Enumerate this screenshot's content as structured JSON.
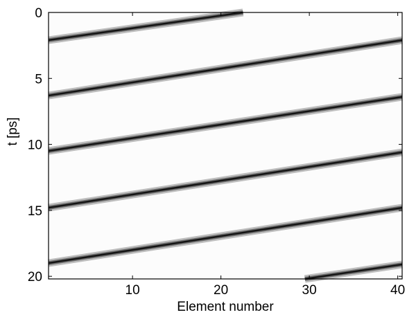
{
  "chart_data": {
    "type": "heatmap",
    "title": "",
    "xlabel": "Element number",
    "ylabel": "t [ps]",
    "xlim": [
      0.5,
      40.5
    ],
    "ylim": [
      0,
      20.2
    ],
    "y_reversed": true,
    "colormap": "gray-inverted",
    "grid": false,
    "legend": "none",
    "x_ticks": [
      "10",
      "20",
      "30",
      "40"
    ],
    "y_ticks": [
      "0",
      "5",
      "10",
      "15",
      "20"
    ],
    "x_tick_values": [
      10,
      20,
      30,
      40
    ],
    "y_tick_values": [
      0,
      5,
      10,
      15,
      20
    ],
    "series": [
      {
        "x": [
          0.5,
          22.5
        ],
        "y": [
          2.1,
          0.0
        ]
      },
      {
        "x": [
          0.5,
          40.5
        ],
        "y": [
          6.3,
          2.1
        ]
      },
      {
        "x": [
          0.5,
          40.5
        ],
        "y": [
          10.5,
          6.4
        ]
      },
      {
        "x": [
          0.5,
          40.5
        ],
        "y": [
          14.8,
          10.6
        ]
      },
      {
        "x": [
          0.5,
          40.5
        ],
        "y": [
          19.0,
          14.8
        ]
      },
      {
        "x": [
          29.5,
          40.5
        ],
        "y": [
          20.2,
          19.1
        ]
      }
    ]
  }
}
